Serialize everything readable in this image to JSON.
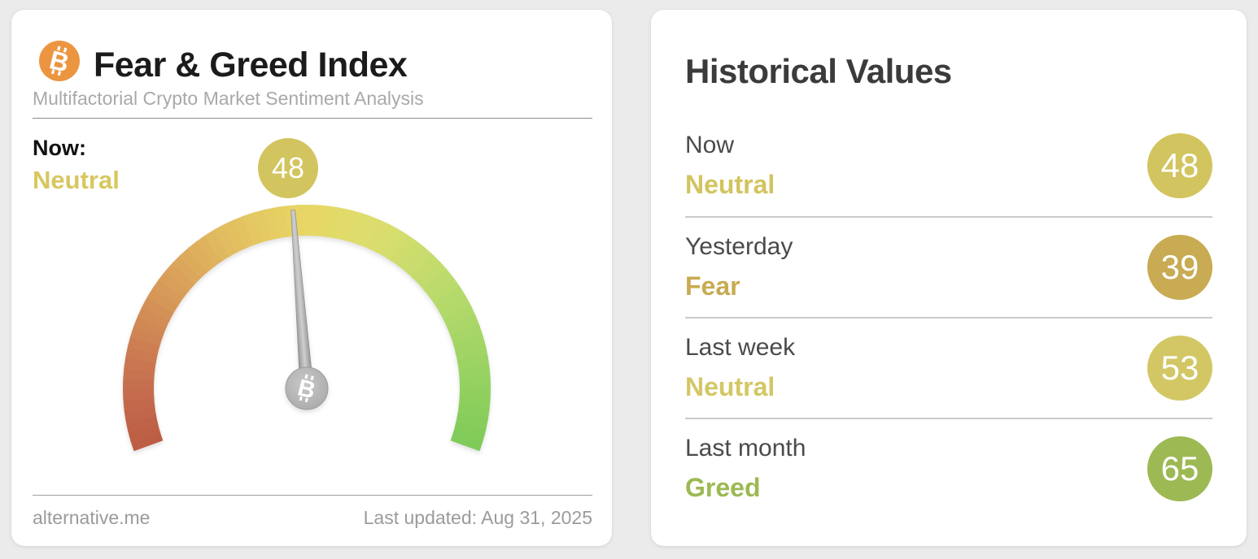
{
  "page": {
    "background_color": "#ebebeb"
  },
  "fear_greed_card": {
    "title": "Fear & Greed Index",
    "subtitle": "Multifactorial Crypto Market Sentiment Analysis",
    "now_label": "Now:",
    "now_classification": "Neutral",
    "now_classification_color": "#d7c75f",
    "value_badge": {
      "value": 48,
      "color": "#d2c45f"
    },
    "bitcoin_logo_color": "#ec9540",
    "gauge": {
      "value": 48,
      "min": 0,
      "max": 100,
      "start_angle": -110,
      "end_angle": 110,
      "arc_colors": [
        "#bb5b44",
        "#c97551",
        "#d79a59",
        "#e2bd60",
        "#e8d765",
        "#d9de6e",
        "#b9db6c",
        "#9bd363",
        "#7ecb58"
      ],
      "needle_color": "#9c9c9c",
      "hub_color": "#b3b3b3"
    },
    "footer": {
      "source": "alternative.me",
      "last_updated": "Last updated: Aug 31, 2025"
    }
  },
  "historical_card": {
    "title": "Historical Values",
    "rows": [
      {
        "label": "Now",
        "classification": "Neutral",
        "value": 48,
        "color": "#d2c45f"
      },
      {
        "label": "Yesterday",
        "classification": "Fear",
        "value": 39,
        "color": "#c8ab52"
      },
      {
        "label": "Last week",
        "classification": "Neutral",
        "value": 53,
        "color": "#d3c765"
      },
      {
        "label": "Last month",
        "classification": "Greed",
        "value": 65,
        "color": "#9cb953"
      }
    ]
  },
  "chart_data": {
    "type": "gauge",
    "title": "Fear & Greed Index",
    "subtitle": "Multifactorial Crypto Market Sentiment Analysis",
    "value": 48,
    "min": 0,
    "max": 100,
    "classification": "Neutral",
    "color_scale": "red (fear) to green (greed), 220-degree arc",
    "series": [
      {
        "name": "Now",
        "classification": "Neutral",
        "value": 48
      },
      {
        "name": "Yesterday",
        "classification": "Fear",
        "value": 39
      },
      {
        "name": "Last week",
        "classification": "Neutral",
        "value": 53
      },
      {
        "name": "Last month",
        "classification": "Greed",
        "value": 65
      }
    ],
    "source": "alternative.me",
    "last_updated": "Aug 31, 2025"
  }
}
